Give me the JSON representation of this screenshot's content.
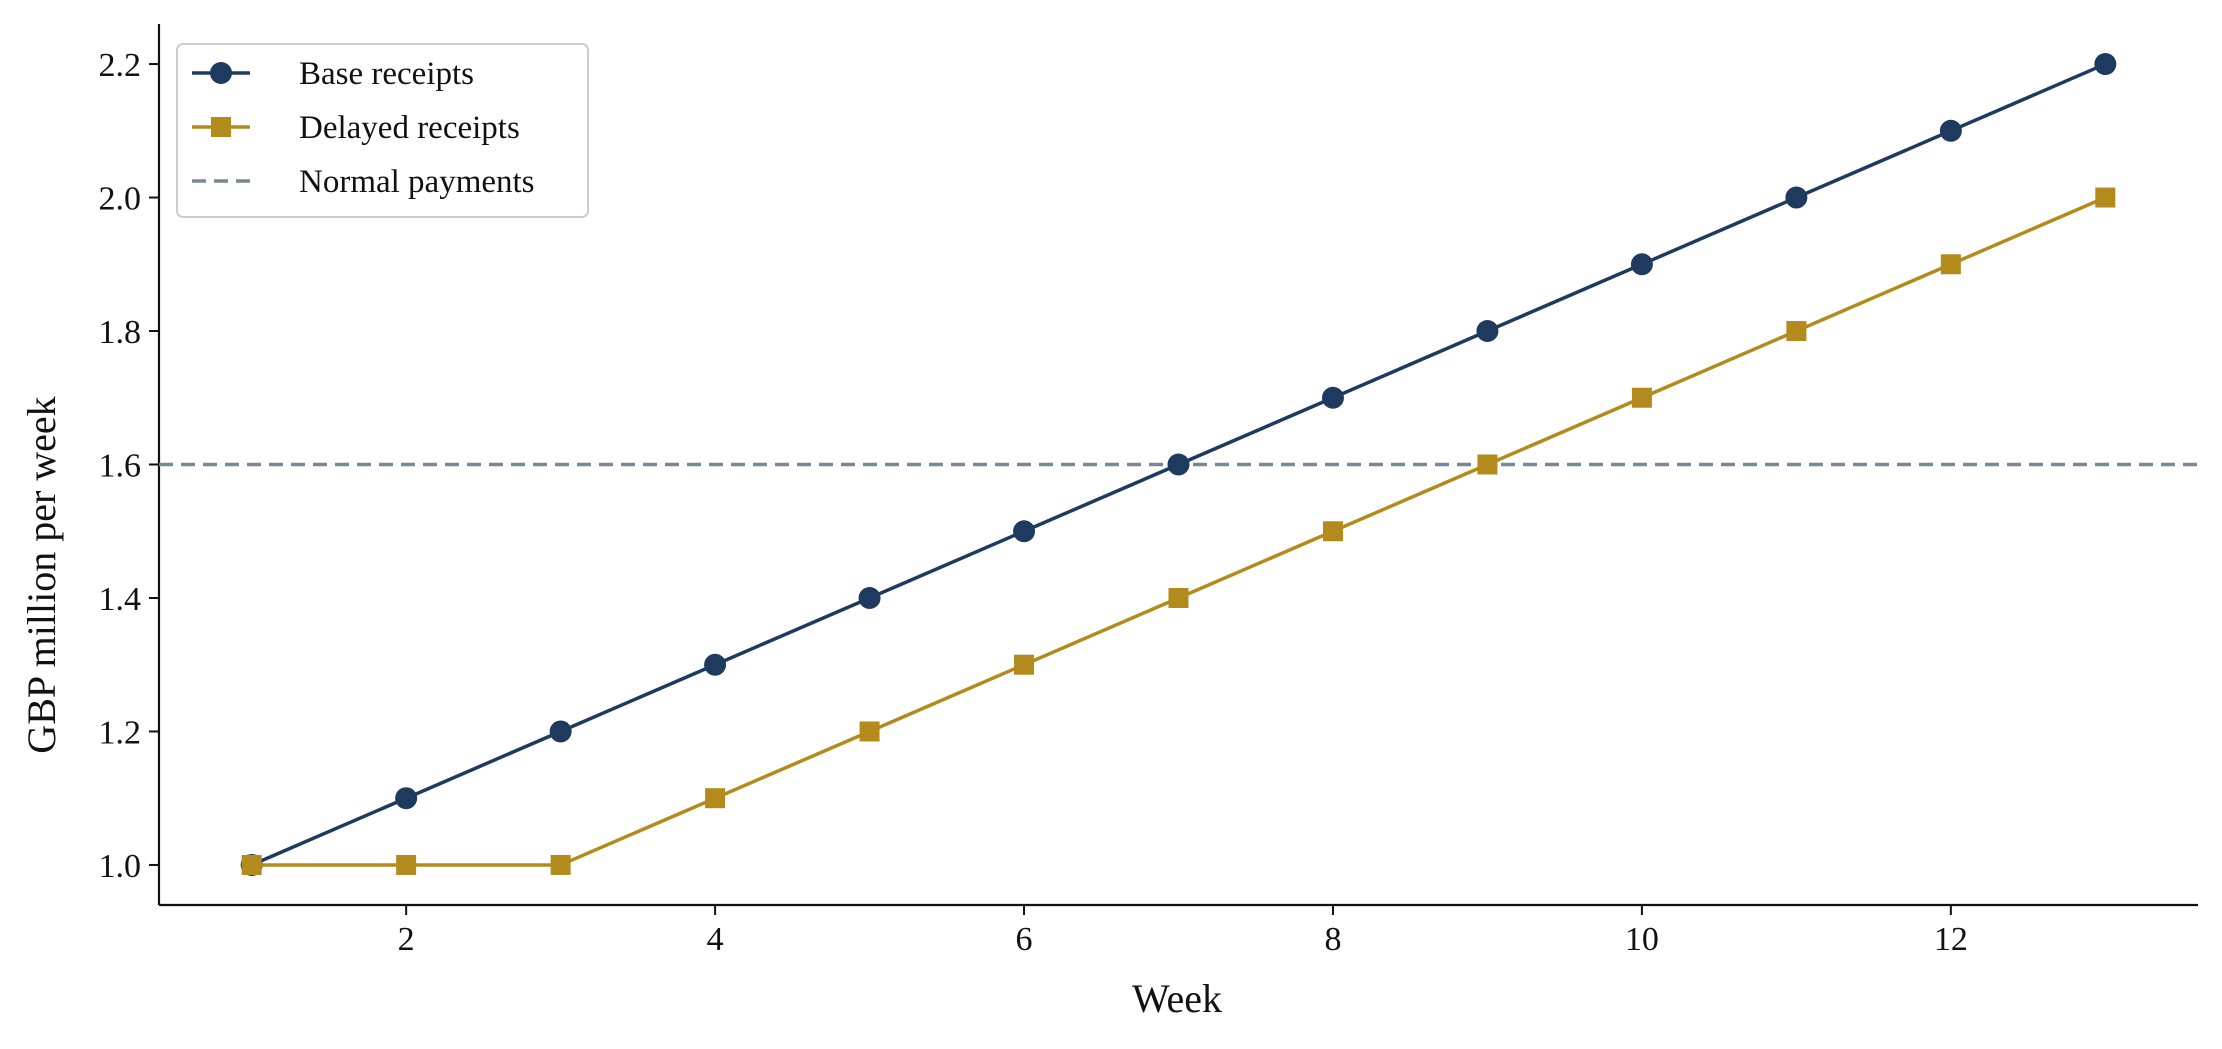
{
  "chart_data": {
    "type": "line",
    "title": "",
    "xlabel": "Week",
    "ylabel": "GBP million per week",
    "xlim": [
      0.4,
      13.6
    ],
    "ylim": [
      0.94,
      2.26
    ],
    "xticks": [
      2,
      4,
      6,
      8,
      10,
      12
    ],
    "xtick_labels": [
      "2",
      "4",
      "6",
      "8",
      "10",
      "12"
    ],
    "yticks": [
      1.0,
      1.2,
      1.4,
      1.6,
      1.8,
      2.0,
      2.2
    ],
    "ytick_labels": [
      "1.0",
      "1.2",
      "1.4",
      "1.6",
      "1.8",
      "2.0",
      "2.2"
    ],
    "grid": false,
    "legend_position": "top-left",
    "x": [
      1,
      2,
      3,
      4,
      5,
      6,
      7,
      8,
      9,
      10,
      11,
      12,
      13
    ],
    "series": [
      {
        "name": "Base receipts",
        "values": [
          1.0,
          1.1,
          1.2,
          1.3,
          1.4,
          1.5,
          1.6,
          1.7,
          1.8,
          1.9,
          2.0,
          2.1,
          2.2
        ],
        "color": "#1f3a5f",
        "marker": "circle",
        "linestyle": "solid"
      },
      {
        "name": "Delayed receipts",
        "values": [
          1.0,
          1.0,
          1.0,
          1.1,
          1.2,
          1.3,
          1.4,
          1.5,
          1.6,
          1.7,
          1.8,
          1.9,
          2.0
        ],
        "color": "#b38b1d",
        "marker": "square",
        "linestyle": "solid"
      }
    ],
    "reference_lines": [
      {
        "name": "Normal payments",
        "y": 1.6,
        "color": "#778899",
        "linestyle": "dashed"
      }
    ]
  }
}
